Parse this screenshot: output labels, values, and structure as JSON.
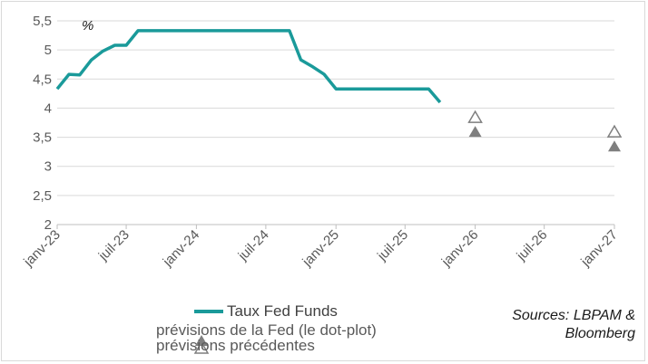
{
  "chart_data": {
    "type": "line",
    "unit_label": "%",
    "ylim": [
      2,
      5.5
    ],
    "y_ticks": [
      "2",
      "2,5",
      "3",
      "3,5",
      "4",
      "4,5",
      "5",
      "5,5"
    ],
    "y_tick_values": [
      2,
      2.5,
      3,
      3.5,
      4,
      4.5,
      5,
      5.5
    ],
    "x_ticks": [
      "janv-23",
      "juil-23",
      "janv-24",
      "juil-24",
      "janv-25",
      "juil-25",
      "janv-26",
      "juil-26",
      "janv-27"
    ],
    "x_tick_dates": [
      "2023-01-01",
      "2023-07-01",
      "2024-01-01",
      "2024-07-01",
      "2025-01-01",
      "2025-07-01",
      "2026-01-01",
      "2026-07-01",
      "2027-01-01"
    ],
    "grid": true,
    "series": [
      {
        "name": "Taux Fed Funds",
        "color": "#1a9a9a",
        "style": "line",
        "points": [
          [
            "2023-01-01",
            4.33
          ],
          [
            "2023-02-01",
            4.58
          ],
          [
            "2023-03-01",
            4.57
          ],
          [
            "2023-04-01",
            4.83
          ],
          [
            "2023-05-01",
            4.98
          ],
          [
            "2023-06-01",
            5.08
          ],
          [
            "2023-07-01",
            5.08
          ],
          [
            "2023-08-01",
            5.33
          ],
          [
            "2023-09-01",
            5.33
          ],
          [
            "2023-10-01",
            5.33
          ],
          [
            "2023-11-01",
            5.33
          ],
          [
            "2023-12-01",
            5.33
          ],
          [
            "2024-01-01",
            5.33
          ],
          [
            "2024-02-01",
            5.33
          ],
          [
            "2024-03-01",
            5.33
          ],
          [
            "2024-04-01",
            5.33
          ],
          [
            "2024-05-01",
            5.33
          ],
          [
            "2024-06-01",
            5.33
          ],
          [
            "2024-07-01",
            5.33
          ],
          [
            "2024-08-01",
            5.33
          ],
          [
            "2024-09-01",
            5.33
          ],
          [
            "2024-10-01",
            4.83
          ],
          [
            "2024-11-01",
            4.71
          ],
          [
            "2024-12-01",
            4.58
          ],
          [
            "2025-01-01",
            4.33
          ],
          [
            "2025-02-01",
            4.33
          ],
          [
            "2025-03-01",
            4.33
          ],
          [
            "2025-04-01",
            4.33
          ],
          [
            "2025-05-01",
            4.33
          ],
          [
            "2025-06-01",
            4.33
          ],
          [
            "2025-07-01",
            4.33
          ],
          [
            "2025-08-01",
            4.33
          ],
          [
            "2025-09-01",
            4.33
          ],
          [
            "2025-10-01",
            4.1
          ]
        ]
      },
      {
        "name": "prévisions de la Fed (le dot-plot)",
        "color": "#7f7f7f",
        "style": "filled-triangle",
        "points": [
          [
            "2026-01-01",
            3.6
          ],
          [
            "2027-01-01",
            3.35
          ]
        ]
      },
      {
        "name": "prévisions précédentes",
        "color": "#7f7f7f",
        "style": "hollow-triangle",
        "points": [
          [
            "2026-01-01",
            3.85
          ],
          [
            "2027-01-01",
            3.6
          ]
        ]
      }
    ],
    "source": "Sources: LBPAM & Bloomberg"
  },
  "legend": {
    "fed_funds": "Taux Fed Funds",
    "dot_plot": "prévisions de la Fed (le dot-plot)",
    "previous": "prévisions précédentes"
  },
  "source_line1": "Sources: LBPAM &",
  "source_line2": "Bloomberg"
}
